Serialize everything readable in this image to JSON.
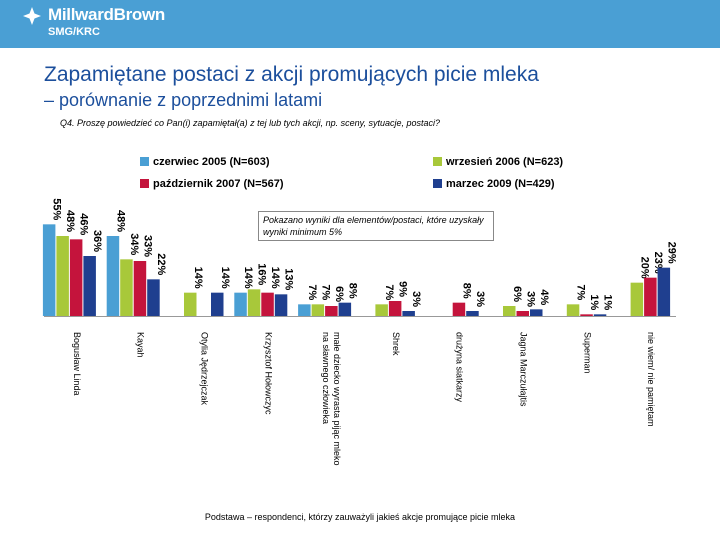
{
  "brand": {
    "name": "MillwardBrown",
    "sub": "SMG/KRC"
  },
  "title": "Zapamiętane postaci z akcji promujących picie mleka",
  "subtitle": "– porównanie z poprzednimi latami",
  "question": "Q4. Proszę powiedzieć co Pan(i) zapamiętał(a) z tej lub tych akcji, np. sceny, sytuacje, postaci?",
  "note": "Pokazano wyniki dla elementów/postaci, które uzyskały wyniki minimum 5%",
  "footer": "Podstawa – respondenci, którzy zauważyli jakieś akcje promujące picie mleka",
  "colors": {
    "header": "#4a9fd4",
    "title": "#1c4f9c"
  },
  "chart_data": {
    "type": "bar",
    "title": "Zapamiętane postaci z akcji promujących picie mleka",
    "xlabel": "",
    "ylabel": "",
    "ylim": [
      0,
      60
    ],
    "legend_position": "top",
    "categories": [
      "nie wiem/ nie pamiętam",
      "Superman",
      "Jagna Marczułajtis",
      "drużyna siatkarzy",
      "Shrek",
      "małe dziecko wyrasta pijąc mleko na sławnego człowieka",
      "Krzysztof Hołowczyc",
      "Otylia Jędrzejczak",
      "Kayah",
      "Bogusław Linda"
    ],
    "series": [
      {
        "name": "czerwiec 2005 (N=603)",
        "color": "#4a9fd4",
        "values": [
          null,
          null,
          null,
          null,
          null,
          7,
          14,
          null,
          48,
          55
        ],
        "labels": [
          "",
          "",
          "",
          "",
          "",
          "7%",
          "14%",
          "",
          "48%",
          "55%"
        ]
      },
      {
        "name": "wrzesień 2006 (N=623)",
        "color": "#a8c83a",
        "values": [
          20,
          7,
          6,
          null,
          7,
          7,
          16,
          14,
          34,
          48
        ],
        "labels": [
          "20%",
          "7%",
          "6%",
          "",
          "7%",
          "7%",
          "16%",
          "14%",
          "34%",
          "48%"
        ]
      },
      {
        "name": "październik 2007 (N=567)",
        "color": "#c4143c",
        "values": [
          23,
          1,
          3,
          8,
          9,
          6,
          14,
          null,
          33,
          46
        ],
        "labels": [
          "23%",
          "1%",
          "3%",
          "8%",
          "9%",
          "6%",
          "14%",
          "",
          "33%",
          "46%"
        ]
      },
      {
        "name": "marzec 2009 (N=429)",
        "color": "#1f3f8f",
        "values": [
          29,
          1,
          4,
          3,
          3,
          8,
          13,
          14,
          22,
          36
        ],
        "labels": [
          "29%",
          "1%",
          "4%",
          "3%",
          "3%",
          "8%",
          "13%",
          "14%",
          "22%",
          "36%"
        ]
      }
    ]
  }
}
